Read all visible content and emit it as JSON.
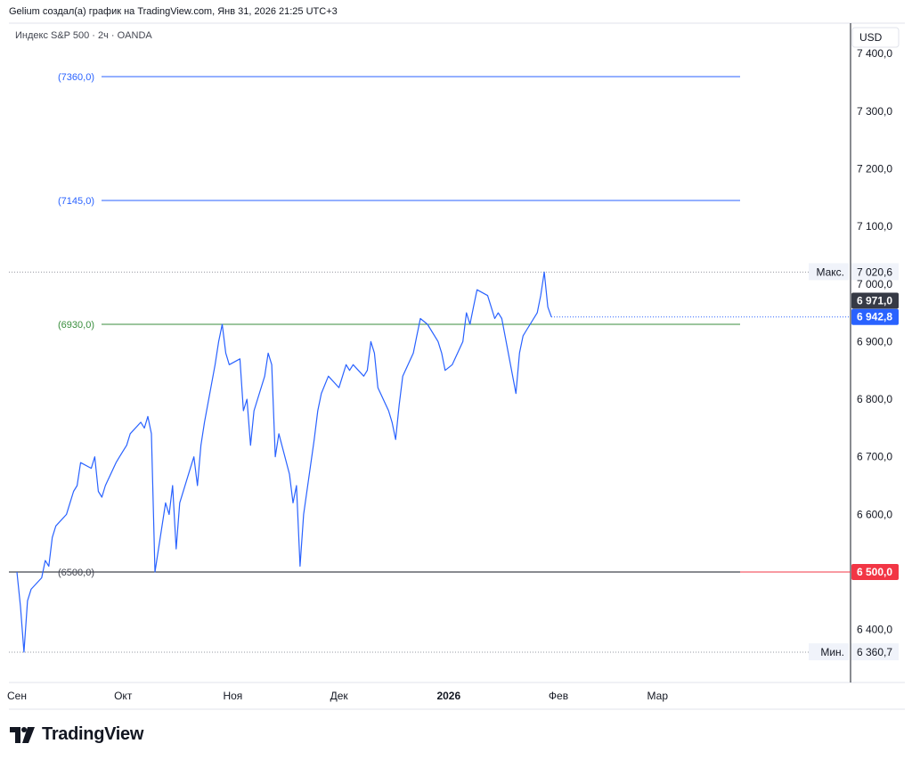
{
  "header": {
    "attribution": "Gelium создал(а) график на TradingView.com, Янв 31, 2026 21:25 UTC+3",
    "symbol_line": "Индекс S&P 500 · 2ч · OANDA"
  },
  "brand": {
    "name": "TradingView"
  },
  "chart_data": {
    "type": "line",
    "currency": "USD",
    "y_ticks": [
      {
        "value": 6400,
        "label": "6 400,0"
      },
      {
        "value": 6500,
        "label": "6 500,0"
      },
      {
        "value": 6600,
        "label": "6 600,0"
      },
      {
        "value": 6700,
        "label": "6 700,0"
      },
      {
        "value": 6800,
        "label": "6 800,0"
      },
      {
        "value": 6900,
        "label": "6 900,0"
      },
      {
        "value": 7000,
        "label": "7 000,0"
      },
      {
        "value": 7100,
        "label": "7 100,0"
      },
      {
        "value": 7200,
        "label": "7 200,0"
      },
      {
        "value": 7300,
        "label": "7 300,0"
      },
      {
        "value": 7400,
        "label": "7 400,0"
      }
    ],
    "x_ticks": [
      {
        "date": "2025-09-01",
        "label": "Сен"
      },
      {
        "date": "2025-10-01",
        "label": "Окт"
      },
      {
        "date": "2025-11-01",
        "label": "Ноя"
      },
      {
        "date": "2025-12-01",
        "label": "Дек"
      },
      {
        "date": "2026-01-01",
        "label": "2026"
      },
      {
        "date": "2026-02-01",
        "label": "Фев"
      },
      {
        "date": "2026-03-01",
        "label": "Мар"
      }
    ],
    "levels": [
      {
        "value": 7360,
        "label": "(7360,0)",
        "color": "#2962ff"
      },
      {
        "value": 7145,
        "label": "(7145,0)",
        "color": "#2962ff"
      },
      {
        "value": 6930,
        "label": "(6930,0)",
        "color": "#388e3c"
      },
      {
        "value": 6500,
        "label": "(6500,0)",
        "color": "#131722",
        "tag": "6 500,0",
        "tag_color": "#f23645"
      }
    ],
    "max": {
      "label": "Макс.",
      "value": 7020.6,
      "value_label": "7 020,6"
    },
    "min": {
      "label": "Мин.",
      "value": 6360.7,
      "value_label": "6 360,7"
    },
    "price_tags": [
      {
        "value": 6971.0,
        "label": "6 971,0",
        "color": "#363a45"
      },
      {
        "value": 6942.8,
        "label": "6 942,8",
        "color": "#2962ff"
      }
    ],
    "series": [
      {
        "color": "#2962ff",
        "points": [
          [
            "2025-09-01",
            6500
          ],
          [
            "2025-09-02",
            6440
          ],
          [
            "2025-09-03",
            6361
          ],
          [
            "2025-09-04",
            6450
          ],
          [
            "2025-09-05",
            6470
          ],
          [
            "2025-09-08",
            6490
          ],
          [
            "2025-09-09",
            6520
          ],
          [
            "2025-09-10",
            6510
          ],
          [
            "2025-09-11",
            6560
          ],
          [
            "2025-09-12",
            6580
          ],
          [
            "2025-09-15",
            6600
          ],
          [
            "2025-09-16",
            6620
          ],
          [
            "2025-09-17",
            6640
          ],
          [
            "2025-09-18",
            6650
          ],
          [
            "2025-09-19",
            6690
          ],
          [
            "2025-09-22",
            6680
          ],
          [
            "2025-09-23",
            6700
          ],
          [
            "2025-09-24",
            6640
          ],
          [
            "2025-09-25",
            6630
          ],
          [
            "2025-09-26",
            6650
          ],
          [
            "2025-09-29",
            6690
          ],
          [
            "2025-09-30",
            6700
          ],
          [
            "2025-10-01",
            6710
          ],
          [
            "2025-10-02",
            6720
          ],
          [
            "2025-10-03",
            6740
          ],
          [
            "2025-10-06",
            6760
          ],
          [
            "2025-10-07",
            6750
          ],
          [
            "2025-10-08",
            6770
          ],
          [
            "2025-10-09",
            6740
          ],
          [
            "2025-10-10",
            6500
          ],
          [
            "2025-10-13",
            6620
          ],
          [
            "2025-10-14",
            6600
          ],
          [
            "2025-10-15",
            6650
          ],
          [
            "2025-10-16",
            6540
          ],
          [
            "2025-10-17",
            6620
          ],
          [
            "2025-10-20",
            6680
          ],
          [
            "2025-10-21",
            6700
          ],
          [
            "2025-10-22",
            6650
          ],
          [
            "2025-10-23",
            6720
          ],
          [
            "2025-10-24",
            6760
          ],
          [
            "2025-10-27",
            6860
          ],
          [
            "2025-10-28",
            6900
          ],
          [
            "2025-10-29",
            6930
          ],
          [
            "2025-10-30",
            6880
          ],
          [
            "2025-10-31",
            6860
          ],
          [
            "2025-11-03",
            6870
          ],
          [
            "2025-11-04",
            6780
          ],
          [
            "2025-11-05",
            6800
          ],
          [
            "2025-11-06",
            6720
          ],
          [
            "2025-11-07",
            6780
          ],
          [
            "2025-11-10",
            6840
          ],
          [
            "2025-11-11",
            6880
          ],
          [
            "2025-11-12",
            6860
          ],
          [
            "2025-11-13",
            6700
          ],
          [
            "2025-11-14",
            6740
          ],
          [
            "2025-11-17",
            6670
          ],
          [
            "2025-11-18",
            6620
          ],
          [
            "2025-11-19",
            6650
          ],
          [
            "2025-11-20",
            6510
          ],
          [
            "2025-11-21",
            6600
          ],
          [
            "2025-11-24",
            6730
          ],
          [
            "2025-11-25",
            6780
          ],
          [
            "2025-11-26",
            6810
          ],
          [
            "2025-11-28",
            6840
          ],
          [
            "2025-12-01",
            6820
          ],
          [
            "2025-12-02",
            6840
          ],
          [
            "2025-12-03",
            6860
          ],
          [
            "2025-12-04",
            6850
          ],
          [
            "2025-12-05",
            6860
          ],
          [
            "2025-12-08",
            6840
          ],
          [
            "2025-12-09",
            6850
          ],
          [
            "2025-12-10",
            6900
          ],
          [
            "2025-12-11",
            6880
          ],
          [
            "2025-12-12",
            6820
          ],
          [
            "2025-12-15",
            6780
          ],
          [
            "2025-12-16",
            6760
          ],
          [
            "2025-12-17",
            6730
          ],
          [
            "2025-12-18",
            6790
          ],
          [
            "2025-12-19",
            6840
          ],
          [
            "2025-12-22",
            6880
          ],
          [
            "2025-12-23",
            6910
          ],
          [
            "2025-12-24",
            6940
          ],
          [
            "2025-12-26",
            6930
          ],
          [
            "2025-12-29",
            6900
          ],
          [
            "2025-12-30",
            6880
          ],
          [
            "2025-12-31",
            6850
          ],
          [
            "2026-01-02",
            6860
          ],
          [
            "2026-01-05",
            6900
          ],
          [
            "2026-01-06",
            6950
          ],
          [
            "2026-01-07",
            6930
          ],
          [
            "2026-01-08",
            6960
          ],
          [
            "2026-01-09",
            6990
          ],
          [
            "2026-01-12",
            6980
          ],
          [
            "2026-01-13",
            6960
          ],
          [
            "2026-01-14",
            6940
          ],
          [
            "2026-01-15",
            6950
          ],
          [
            "2026-01-16",
            6940
          ],
          [
            "2026-01-20",
            6810
          ],
          [
            "2026-01-21",
            6880
          ],
          [
            "2026-01-22",
            6910
          ],
          [
            "2026-01-23",
            6920
          ],
          [
            "2026-01-26",
            6950
          ],
          [
            "2026-01-27",
            6980
          ],
          [
            "2026-01-28",
            7020.6
          ],
          [
            "2026-01-29",
            6960
          ],
          [
            "2026-01-30",
            6942.8
          ]
        ]
      }
    ]
  }
}
